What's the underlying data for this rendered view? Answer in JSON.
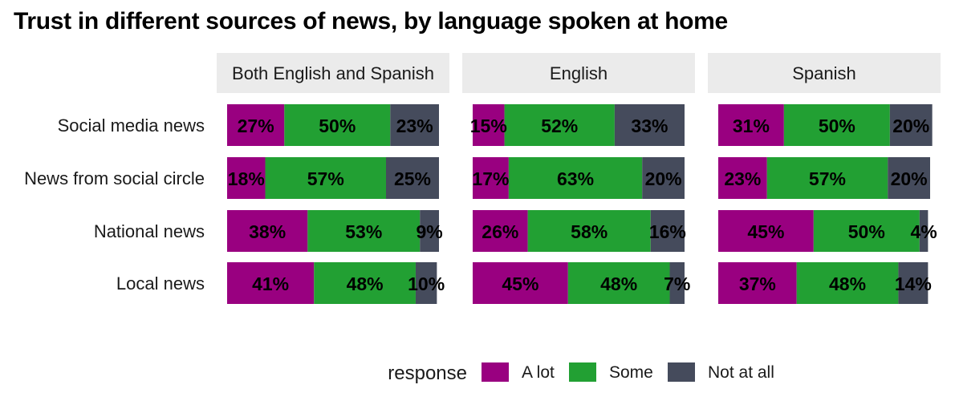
{
  "chart_data": {
    "type": "bar",
    "orientation": "horizontal",
    "stacked": true,
    "title": "Trust in different sources of news, by language spoken at home",
    "categories": [
      "Social media news",
      "News from social circle",
      "National news",
      "Local news"
    ],
    "legend": {
      "title": "response",
      "placement": "bottom",
      "entries": [
        {
          "name": "A lot",
          "color": "#990080"
        },
        {
          "name": "Some",
          "color": "#22A033"
        },
        {
          "name": "Not at all",
          "color": "#454B5C"
        }
      ]
    },
    "facets": [
      {
        "name": "Both English and Spanish",
        "series": [
          {
            "name": "A lot",
            "values": [
              27,
              18,
              38,
              41
            ]
          },
          {
            "name": "Some",
            "values": [
              50,
              57,
              53,
              48
            ]
          },
          {
            "name": "Not at all",
            "values": [
              23,
              25,
              9,
              10
            ]
          }
        ]
      },
      {
        "name": "English",
        "series": [
          {
            "name": "A lot",
            "values": [
              15,
              17,
              26,
              45
            ]
          },
          {
            "name": "Some",
            "values": [
              52,
              63,
              58,
              48
            ]
          },
          {
            "name": "Not at all",
            "values": [
              33,
              20,
              16,
              7
            ]
          }
        ]
      },
      {
        "name": "Spanish",
        "series": [
          {
            "name": "A lot",
            "values": [
              31,
              23,
              45,
              37
            ]
          },
          {
            "name": "Some",
            "values": [
              50,
              57,
              50,
              48
            ]
          },
          {
            "name": "Not at all",
            "values": [
              20,
              20,
              4,
              14
            ]
          }
        ]
      }
    ],
    "value_suffix": "%"
  }
}
